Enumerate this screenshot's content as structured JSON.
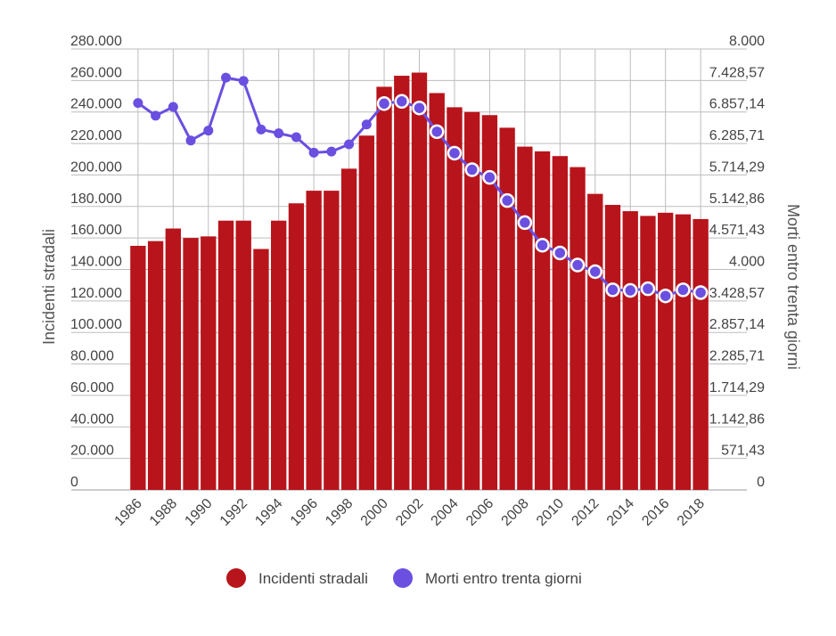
{
  "chart_data": {
    "type": "bar+line",
    "title": "",
    "x": [
      1986,
      1987,
      1988,
      1989,
      1990,
      1991,
      1992,
      1993,
      1994,
      1995,
      1996,
      1997,
      1998,
      1999,
      2000,
      2001,
      2002,
      2003,
      2004,
      2005,
      2006,
      2007,
      2008,
      2009,
      2010,
      2011,
      2012,
      2013,
      2014,
      2015,
      2016,
      2017,
      2018
    ],
    "x_tick_labels": [
      "1986",
      "1988",
      "1990",
      "1992",
      "1994",
      "1996",
      "1998",
      "2000",
      "2002",
      "2004",
      "2006",
      "2008",
      "2010",
      "2012",
      "2014",
      "2016",
      "2018"
    ],
    "series": [
      {
        "name": "Incidenti stradali",
        "type": "bar",
        "axis": "left",
        "color": "#b8141b",
        "values": [
          155000,
          158000,
          166000,
          160000,
          161000,
          171000,
          171000,
          153000,
          171000,
          182000,
          190000,
          190000,
          204000,
          225000,
          256000,
          263000,
          265000,
          252000,
          243000,
          240000,
          238000,
          230000,
          218000,
          215000,
          212000,
          205000,
          188000,
          181000,
          177000,
          174000,
          176000,
          175000,
          172000
        ]
      },
      {
        "name": "Morti entro trenta giorni",
        "type": "line",
        "axis": "right",
        "color": "#6a4fe0",
        "values": [
          7020,
          6790,
          6950,
          6340,
          6520,
          7480,
          7420,
          6540,
          6470,
          6400,
          6120,
          6140,
          6270,
          6630,
          7010,
          7050,
          6930,
          6500,
          6110,
          5810,
          5670,
          5250,
          4850,
          4440,
          4300,
          4080,
          3960,
          3630,
          3620,
          3650,
          3520,
          3630,
          3580
        ],
        "marker_ring_from_index": 14
      }
    ],
    "left_axis": {
      "label": "Incidenti stradali",
      "range": [
        0,
        280000
      ],
      "ticks": [
        0,
        20000,
        40000,
        60000,
        80000,
        100000,
        120000,
        140000,
        160000,
        180000,
        200000,
        220000,
        240000,
        260000,
        280000
      ],
      "tick_labels": [
        "0",
        "20.000",
        "40.000",
        "60.000",
        "80.000",
        "100.000",
        "120.000",
        "140.000",
        "160.000",
        "180.000",
        "200.000",
        "220.000",
        "240.000",
        "260.000",
        "280.000"
      ]
    },
    "right_axis": {
      "label": "Morti entro trenta giorni",
      "range": [
        0,
        8000
      ],
      "tick_labels": [
        "0",
        "571,43",
        "1.142,86",
        "1.714,29",
        "2.285,71",
        "2.857,14",
        "3.428,57",
        "4.000",
        "4.571,43",
        "5.142,86",
        "5.714,29",
        "6.285,71",
        "6.857,14",
        "7.428,57",
        "8.000"
      ]
    },
    "grid": true,
    "legend": {
      "position": "bottom",
      "items": [
        {
          "label": "Incidenti stradali",
          "color": "#b8141b"
        },
        {
          "label": "Morti entro trenta giorni",
          "color": "#6a4fe0"
        }
      ]
    }
  }
}
